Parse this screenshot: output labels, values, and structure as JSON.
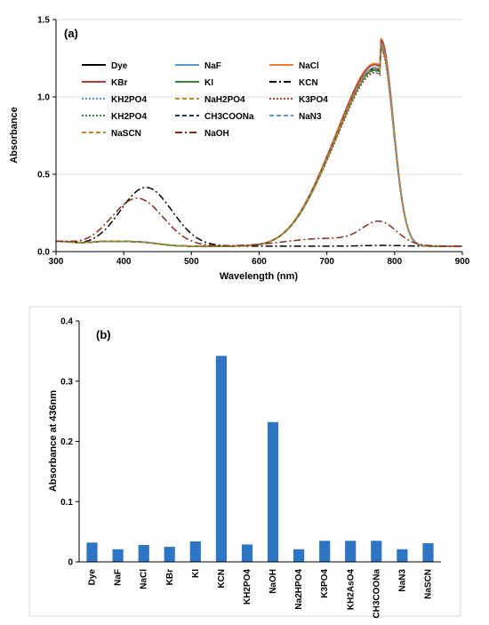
{
  "chart_data": [
    {
      "type": "line",
      "panel_label": "(a)",
      "xlabel": "Wavelength (nm)",
      "ylabel": "Absorbance",
      "xlim": [
        300,
        900
      ],
      "ylim": [
        0,
        1.5
      ],
      "x_ticks": [
        300,
        400,
        500,
        600,
        700,
        800,
        900
      ],
      "y_ticks": [
        0.0,
        0.5,
        1.0,
        1.5
      ],
      "y_tick_labels": [
        "0.0",
        "0.5",
        "1.0",
        "1.5"
      ],
      "legend_position": "top-left, inside plot, 3 columns",
      "series": [
        {
          "name": "Dye",
          "color": "#000000",
          "dash": "solid",
          "profile": "dye",
          "peak": 1.3
        },
        {
          "name": "NaF",
          "color": "#5b9bd5",
          "dash": "solid",
          "profile": "dye",
          "peak": 1.31
        },
        {
          "name": "NaCl",
          "color": "#ed7d31",
          "dash": "solid",
          "profile": "dye",
          "peak": 1.34
        },
        {
          "name": "KBr",
          "color": "#c0392b",
          "dash": "solid",
          "profile": "dye",
          "peak": 1.33
        },
        {
          "name": "KI",
          "color": "#2e8b3a",
          "dash": "solid",
          "profile": "dye",
          "peak": 1.29
        },
        {
          "name": "KCN",
          "color": "#000000",
          "dash": "dashdot",
          "profile": "cn",
          "peak": 0.38
        },
        {
          "name": "KH2PO4",
          "color": "#5b9bd5",
          "dash": "dot",
          "profile": "dye",
          "peak": 1.28
        },
        {
          "name": "NaH2PO4",
          "color": "#c8861f",
          "dash": "dash",
          "profile": "dye",
          "peak": 1.3
        },
        {
          "name": "K3PO4",
          "color": "#c0392b",
          "dash": "dot",
          "profile": "dye",
          "peak": 1.27
        },
        {
          "name": "KH2PO4",
          "color": "#2e8b3a",
          "dash": "dot",
          "profile": "dye",
          "peak": 1.29
        },
        {
          "name": "CH3COONa",
          "color": "#1f3864",
          "dash": "dash",
          "profile": "dye",
          "peak": 1.3
        },
        {
          "name": "NaN3",
          "color": "#5b9bd5",
          "dash": "dash",
          "profile": "dye",
          "peak": 1.31
        },
        {
          "name": "NaSCN",
          "color": "#c8861f",
          "dash": "dash",
          "profile": "dye",
          "peak": 1.3
        },
        {
          "name": "NaOH",
          "color": "#8b2e16",
          "dash": "dashdot",
          "profile": "oh",
          "peak": 0.31
        }
      ]
    },
    {
      "type": "bar",
      "panel_label": "(b)",
      "xlabel": "",
      "ylabel": "Absorbance at 436nm",
      "ylim": [
        0,
        0.4
      ],
      "y_ticks": [
        0,
        0.1,
        0.2,
        0.3,
        0.4
      ],
      "y_tick_labels": [
        "0",
        "0.1",
        "0.2",
        "0.3",
        "0.4"
      ],
      "grid": false,
      "bar_color": "#2e75c6",
      "categories": [
        "Dye",
        "NaF",
        "NaCl",
        "KBr",
        "KI",
        "KCN",
        "KH2PO4",
        "NaOH",
        "Na2HPO4",
        "K3PO4",
        "KH2AsO4",
        "CH3COONa",
        "NaN3",
        "NaSCN"
      ],
      "values": [
        0.032,
        0.021,
        0.028,
        0.025,
        0.034,
        0.342,
        0.029,
        0.232,
        0.021,
        0.035,
        0.035,
        0.035,
        0.021,
        0.031
      ]
    }
  ]
}
